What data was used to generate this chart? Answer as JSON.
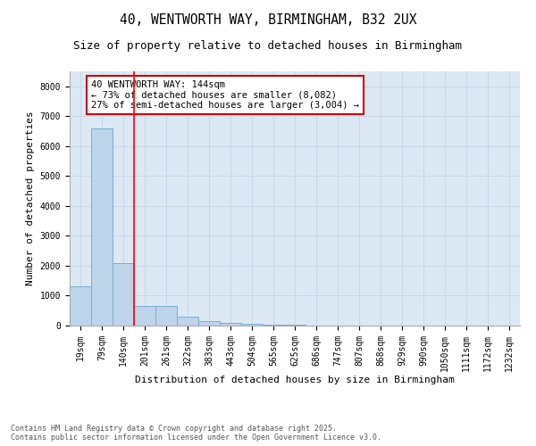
{
  "title": "40, WENTWORTH WAY, BIRMINGHAM, B32 2UX",
  "subtitle": "Size of property relative to detached houses in Birmingham",
  "xlabel": "Distribution of detached houses by size in Birmingham",
  "ylabel": "Number of detached properties",
  "categories": [
    "19sqm",
    "79sqm",
    "140sqm",
    "201sqm",
    "261sqm",
    "322sqm",
    "383sqm",
    "443sqm",
    "504sqm",
    "565sqm",
    "625sqm",
    "686sqm",
    "747sqm",
    "807sqm",
    "868sqm",
    "929sqm",
    "990sqm",
    "1050sqm",
    "1111sqm",
    "1172sqm",
    "1232sqm"
  ],
  "values": [
    1300,
    6600,
    2100,
    650,
    650,
    300,
    150,
    100,
    60,
    40,
    40,
    0,
    0,
    0,
    0,
    0,
    0,
    0,
    0,
    0,
    0
  ],
  "bar_color": "#bed4ea",
  "bar_edge_color": "#7aadd4",
  "red_line_index": 2,
  "annotation_text": "40 WENTWORTH WAY: 144sqm\n← 73% of detached houses are smaller (8,082)\n27% of semi-detached houses are larger (3,004) →",
  "annotation_box_color": "#ffffff",
  "annotation_box_edge_color": "#cc0000",
  "ylim": [
    0,
    8500
  ],
  "yticks": [
    0,
    1000,
    2000,
    3000,
    4000,
    5000,
    6000,
    7000,
    8000
  ],
  "grid_color": "#c8d8e8",
  "bg_color": "#dce8f4",
  "footer_line1": "Contains HM Land Registry data © Crown copyright and database right 2025.",
  "footer_line2": "Contains public sector information licensed under the Open Government Licence v3.0.",
  "title_fontsize": 10.5,
  "subtitle_fontsize": 9,
  "tick_fontsize": 7,
  "axis_label_fontsize": 8,
  "annotation_fontsize": 7.5,
  "footer_fontsize": 6
}
